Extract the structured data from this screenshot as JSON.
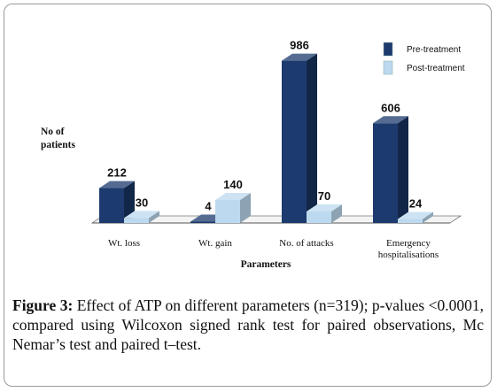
{
  "chart_data": {
    "type": "bar",
    "categories": [
      "Wt. loss",
      "Wt. gain",
      "No. of attacks",
      "Emergency hospitalisations"
    ],
    "series": [
      {
        "name": "Pre-treatment",
        "values": [
          212,
          4,
          986,
          606
        ],
        "color": "#1c3a6e"
      },
      {
        "name": "Post-treatment",
        "values": [
          30,
          140,
          70,
          24
        ],
        "color": "#bcd9ef"
      }
    ],
    "xlabel": "Parameters",
    "ylabel": "No of patients",
    "ylim": [
      0,
      1000
    ],
    "grid": false,
    "legend": "top-right",
    "bar_style": "3d"
  },
  "caption": {
    "label": "Figure 3:",
    "text": " Effect of ATP on different parameters (n=319); p-values <0.0001, compared using Wilcoxon signed rank test for paired observations, Mc Nemar’s test and paired t–test."
  }
}
